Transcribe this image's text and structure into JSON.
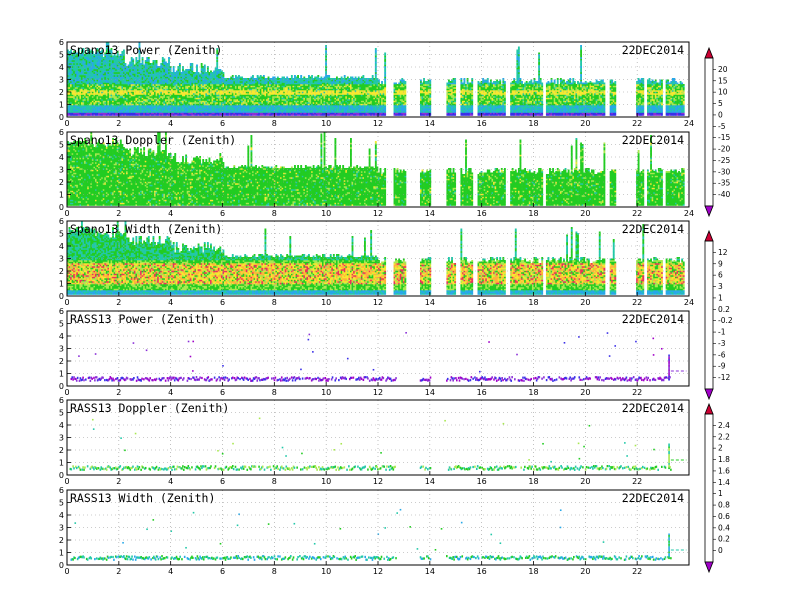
{
  "chart_data": [
    {
      "type": "heatmap",
      "title": "Spano13 Power (Zenith)",
      "date": "22DEC2014",
      "xlim": [
        0,
        24
      ],
      "ylim": [
        0,
        6
      ],
      "x_ticks": [
        "0",
        "2",
        "4",
        "6",
        "8",
        "10",
        "12",
        "14",
        "16",
        "18",
        "20",
        "22",
        "24"
      ],
      "y_ticks": [
        "0",
        "1",
        "2",
        "3",
        "4",
        "5",
        "6"
      ],
      "grid": true,
      "colorbar": {
        "labels": [
          "20",
          "15",
          "10",
          "5",
          "0",
          "-5",
          "-15",
          "-20",
          "-25",
          "-30",
          "-35",
          "-40"
        ],
        "colors": [
          "#cc0033",
          "#e8335a",
          "#ff7a50",
          "#ffb23a",
          "#f7e830",
          "#a8e850",
          "#22cc22",
          "#22c8a8",
          "#28a8e8",
          "#2f6fe8",
          "#3a2fe8",
          "#8a2fd8",
          "#a000c8"
        ]
      },
      "data_gaps": [
        [
          12.25,
          12.55
        ],
        [
          13.05,
          13.6
        ],
        [
          14.0,
          14.6
        ],
        [
          15.0,
          15.15
        ],
        [
          15.65,
          15.8
        ],
        [
          16.9,
          17.05
        ],
        [
          18.3,
          18.45
        ],
        [
          20.75,
          20.9
        ],
        [
          21.15,
          21.95
        ],
        [
          22.25,
          22.35
        ],
        [
          22.95,
          23.05
        ]
      ],
      "features": {
        "max_height_km": 5.6,
        "typical_top_km": 3.0,
        "strong_band_km": [
          0.3,
          0.9
        ],
        "bright_layer_km": 1.9
      }
    },
    {
      "type": "heatmap",
      "title": "Spano13 Doppler (Zenith)",
      "date": "22DEC2014",
      "xlim": [
        0,
        24
      ],
      "ylim": [
        0,
        6
      ],
      "x_ticks": [
        "0",
        "2",
        "4",
        "6",
        "8",
        "10",
        "12",
        "14",
        "16",
        "18",
        "20",
        "22",
        "24"
      ],
      "y_ticks": [
        "0",
        "1",
        "2",
        "3",
        "4",
        "5",
        "6"
      ],
      "grid": true,
      "colorbar": null,
      "data_gaps": [
        [
          12.25,
          12.55
        ],
        [
          13.05,
          13.6
        ],
        [
          14.0,
          14.6
        ],
        [
          15.0,
          15.15
        ],
        [
          15.65,
          15.8
        ],
        [
          16.9,
          17.05
        ],
        [
          18.3,
          18.45
        ],
        [
          20.75,
          20.9
        ],
        [
          21.15,
          21.95
        ],
        [
          22.25,
          22.35
        ],
        [
          22.95,
          23.05
        ]
      ],
      "features": {
        "dominant_color": "green"
      }
    },
    {
      "type": "heatmap",
      "title": "Spano13 Width (Zenith)",
      "date": "22DEC2014",
      "xlim": [
        0,
        24
      ],
      "ylim": [
        0,
        6
      ],
      "x_ticks": [
        "0",
        "2",
        "4",
        "6",
        "8",
        "10",
        "12",
        "14",
        "16",
        "18",
        "20",
        "22",
        "24"
      ],
      "y_ticks": [
        "0",
        "1",
        "2",
        "3",
        "4",
        "5",
        "6"
      ],
      "grid": true,
      "colorbar": {
        "labels": [
          "12",
          "9",
          "6",
          "3",
          "1",
          "0.2",
          "-0.2",
          "-1",
          "-3",
          "-6",
          "-9",
          "-12"
        ],
        "colors": [
          "#cc0033",
          "#e8335a",
          "#ff7a50",
          "#ffb23a",
          "#f7e830",
          "#a8e850",
          "#22cc22",
          "#22c8a8",
          "#28a8e8",
          "#2f6fe8",
          "#3a2fe8",
          "#8a2fd8",
          "#a000c8"
        ]
      },
      "data_gaps": [
        [
          12.25,
          12.55
        ],
        [
          13.05,
          13.6
        ],
        [
          14.0,
          14.6
        ],
        [
          15.0,
          15.15
        ],
        [
          15.65,
          15.8
        ],
        [
          16.9,
          17.05
        ],
        [
          18.3,
          18.45
        ],
        [
          20.75,
          20.9
        ],
        [
          21.15,
          21.95
        ],
        [
          22.25,
          22.35
        ],
        [
          22.95,
          23.05
        ]
      ],
      "features": {
        "hot_band_km": [
          1.0,
          2.6
        ]
      }
    },
    {
      "type": "scatter",
      "title": "RASS13 Power (Zenith)",
      "date": "22DEC2014",
      "xlim": [
        0,
        24
      ],
      "ylim": [
        0,
        6
      ],
      "x_ticks": [
        "0",
        "2",
        "4",
        "6",
        "8",
        "10",
        "12",
        "14",
        "16",
        "18",
        "20",
        "22"
      ],
      "y_ticks": [
        "0",
        "1",
        "2",
        "3",
        "4",
        "5",
        "6"
      ],
      "grid": true,
      "colorbar": null,
      "features": {
        "band_km": [
          0.5,
          0.8
        ],
        "dominant_color": "purple",
        "end_hour": 23.3
      }
    },
    {
      "type": "scatter",
      "title": "RASS13 Doppler (Zenith)",
      "date": "22DEC2014",
      "xlim": [
        0,
        24
      ],
      "ylim": [
        0,
        6
      ],
      "x_ticks": [
        "0",
        "2",
        "4",
        "6",
        "8",
        "10",
        "12",
        "14",
        "16",
        "18",
        "20",
        "22"
      ],
      "y_ticks": [
        "0",
        "1",
        "2",
        "3",
        "4",
        "5",
        "6"
      ],
      "grid": true,
      "colorbar": {
        "labels": [
          "2.4",
          "2.2",
          "2",
          "1.8",
          "1.6",
          "1.4",
          "1",
          "0.8",
          "0.6",
          "0.4",
          "0.2",
          "0"
        ],
        "colors": [
          "#cc0033",
          "#e8335a",
          "#ff7a50",
          "#ffb23a",
          "#f7e830",
          "#a8e850",
          "#22cc22",
          "#22c8a8",
          "#28a8e8",
          "#2f6fe8",
          "#3a2fe8",
          "#8a2fd8",
          "#a000c8"
        ]
      },
      "features": {
        "band_km": [
          0.5,
          0.8
        ],
        "dominant_color": "green",
        "end_hour": 23.3
      }
    },
    {
      "type": "scatter",
      "title": "RASS13 Width (Zenith)",
      "date": "22DEC2014",
      "xlim": [
        0,
        24
      ],
      "ylim": [
        0,
        6
      ],
      "x_ticks": [
        "0",
        "2",
        "4",
        "6",
        "8",
        "10",
        "12",
        "14",
        "16",
        "18",
        "20",
        "22"
      ],
      "y_ticks": [
        "0",
        "1",
        "2",
        "3",
        "4",
        "5",
        "6"
      ],
      "grid": true,
      "colorbar": null,
      "features": {
        "band_km": [
          0.5,
          0.8
        ],
        "dominant_color": "cyan-green",
        "end_hour": 23.3
      }
    }
  ]
}
